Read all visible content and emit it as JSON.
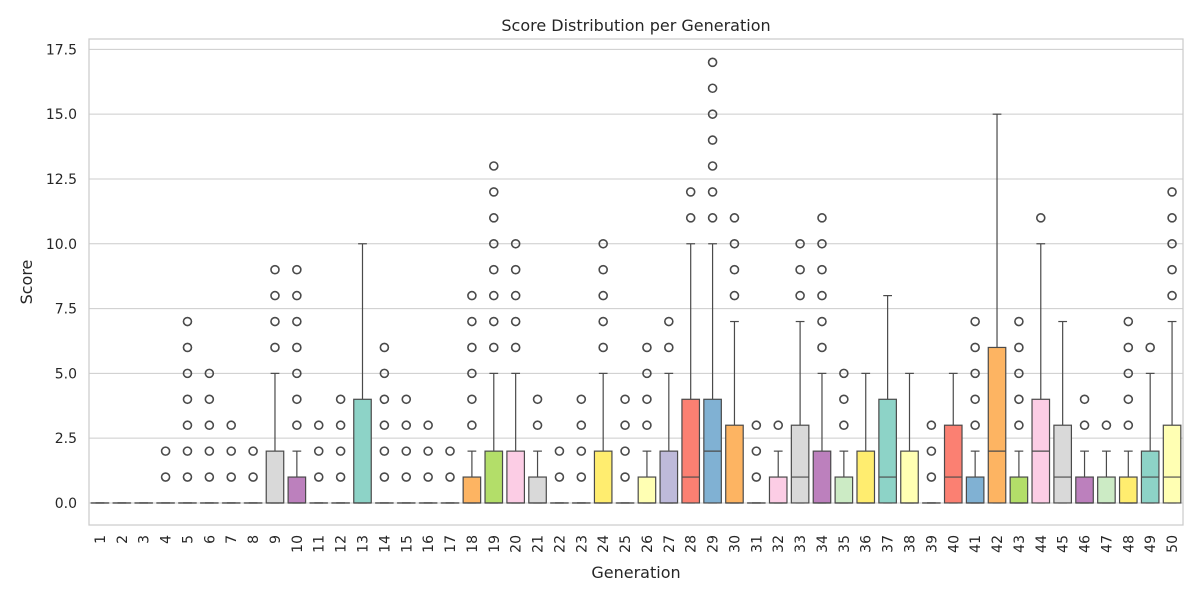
{
  "chart_data": {
    "type": "box",
    "title": "Score Distribution per Generation",
    "xlabel": "Generation",
    "ylabel": "Score",
    "ylim": [
      -0.85,
      17.9
    ],
    "yticks": [
      "0.0",
      "2.5",
      "5.0",
      "7.5",
      "10.0",
      "12.5",
      "15.0",
      "17.5"
    ],
    "grid": true,
    "legend": "none",
    "palette": [
      "#8dd3c7",
      "#ffffb3",
      "#bebada",
      "#fb8072",
      "#80b1d3",
      "#fdb462",
      "#b3de69",
      "#fccde5",
      "#d9d9d9",
      "#bc80bd",
      "#ccebc5",
      "#ffed6f"
    ],
    "series": [
      {
        "gen": "1",
        "q1": 0,
        "median": 0,
        "q3": 0,
        "whisker_low": 0,
        "whisker_high": 0,
        "outliers": []
      },
      {
        "gen": "2",
        "q1": 0,
        "median": 0,
        "q3": 0,
        "whisker_low": 0,
        "whisker_high": 0,
        "outliers": []
      },
      {
        "gen": "3",
        "q1": 0,
        "median": 0,
        "q3": 0,
        "whisker_low": 0,
        "whisker_high": 0,
        "outliers": []
      },
      {
        "gen": "4",
        "q1": 0,
        "median": 0,
        "q3": 0,
        "whisker_low": 0,
        "whisker_high": 0,
        "outliers": [
          1,
          2
        ]
      },
      {
        "gen": "5",
        "q1": 0,
        "median": 0,
        "q3": 0,
        "whisker_low": 0,
        "whisker_high": 0,
        "outliers": [
          1,
          2,
          3,
          4,
          5,
          6,
          7
        ]
      },
      {
        "gen": "6",
        "q1": 0,
        "median": 0,
        "q3": 0,
        "whisker_low": 0,
        "whisker_high": 0,
        "outliers": [
          1,
          2,
          3,
          4,
          5
        ]
      },
      {
        "gen": "7",
        "q1": 0,
        "median": 0,
        "q3": 0,
        "whisker_low": 0,
        "whisker_high": 0,
        "outliers": [
          1,
          2,
          3
        ]
      },
      {
        "gen": "8",
        "q1": 0,
        "median": 0,
        "q3": 0,
        "whisker_low": 0,
        "whisker_high": 0,
        "outliers": [
          1,
          2
        ]
      },
      {
        "gen": "9",
        "q1": 0,
        "median": 0,
        "q3": 2,
        "whisker_low": 0,
        "whisker_high": 5,
        "outliers": [
          6,
          7,
          8,
          9
        ]
      },
      {
        "gen": "10",
        "q1": 0,
        "median": 0,
        "q3": 1,
        "whisker_low": 0,
        "whisker_high": 2,
        "outliers": [
          3,
          4,
          5,
          6,
          7,
          8,
          9
        ]
      },
      {
        "gen": "11",
        "q1": 0,
        "median": 0,
        "q3": 0,
        "whisker_low": 0,
        "whisker_high": 0,
        "outliers": [
          1,
          2,
          3
        ]
      },
      {
        "gen": "12",
        "q1": 0,
        "median": 0,
        "q3": 0,
        "whisker_low": 0,
        "whisker_high": 0,
        "outliers": [
          1,
          2,
          3,
          4
        ]
      },
      {
        "gen": "13",
        "q1": 0,
        "median": 0,
        "q3": 4,
        "whisker_low": 0,
        "whisker_high": 10,
        "outliers": []
      },
      {
        "gen": "14",
        "q1": 0,
        "median": 0,
        "q3": 0,
        "whisker_low": 0,
        "whisker_high": 0,
        "outliers": [
          1,
          2,
          3,
          4,
          5,
          6
        ]
      },
      {
        "gen": "15",
        "q1": 0,
        "median": 0,
        "q3": 0,
        "whisker_low": 0,
        "whisker_high": 0,
        "outliers": [
          1,
          2,
          3,
          4
        ]
      },
      {
        "gen": "16",
        "q1": 0,
        "median": 0,
        "q3": 0,
        "whisker_low": 0,
        "whisker_high": 0,
        "outliers": [
          1,
          2,
          3
        ]
      },
      {
        "gen": "17",
        "q1": 0,
        "median": 0,
        "q3": 0,
        "whisker_low": 0,
        "whisker_high": 0,
        "outliers": [
          1,
          2
        ]
      },
      {
        "gen": "18",
        "q1": 0,
        "median": 0,
        "q3": 1,
        "whisker_low": 0,
        "whisker_high": 2,
        "outliers": [
          3,
          4,
          5,
          6,
          7,
          8
        ]
      },
      {
        "gen": "19",
        "q1": 0,
        "median": 0,
        "q3": 2,
        "whisker_low": 0,
        "whisker_high": 5,
        "outliers": [
          6,
          7,
          8,
          9,
          10,
          11,
          12,
          13
        ]
      },
      {
        "gen": "20",
        "q1": 0,
        "median": 0,
        "q3": 2,
        "whisker_low": 0,
        "whisker_high": 5,
        "outliers": [
          6,
          7,
          8,
          9,
          10
        ]
      },
      {
        "gen": "21",
        "q1": 0,
        "median": 0,
        "q3": 1,
        "whisker_low": 0,
        "whisker_high": 2,
        "outliers": [
          3,
          4
        ]
      },
      {
        "gen": "22",
        "q1": 0,
        "median": 0,
        "q3": 0,
        "whisker_low": 0,
        "whisker_high": 0,
        "outliers": [
          1,
          2
        ]
      },
      {
        "gen": "23",
        "q1": 0,
        "median": 0,
        "q3": 0,
        "whisker_low": 0,
        "whisker_high": 0,
        "outliers": [
          1,
          2,
          3,
          4
        ]
      },
      {
        "gen": "24",
        "q1": 0,
        "median": 0,
        "q3": 2,
        "whisker_low": 0,
        "whisker_high": 5,
        "outliers": [
          6,
          7,
          8,
          9,
          10
        ]
      },
      {
        "gen": "25",
        "q1": 0,
        "median": 0,
        "q3": 0,
        "whisker_low": 0,
        "whisker_high": 0,
        "outliers": [
          1,
          2,
          3,
          4
        ]
      },
      {
        "gen": "26",
        "q1": 0,
        "median": 0,
        "q3": 1,
        "whisker_low": 0,
        "whisker_high": 2,
        "outliers": [
          3,
          4,
          5,
          6
        ]
      },
      {
        "gen": "27",
        "q1": 0,
        "median": 0,
        "q3": 2,
        "whisker_low": 0,
        "whisker_high": 5,
        "outliers": [
          6,
          7
        ]
      },
      {
        "gen": "28",
        "q1": 0,
        "median": 1,
        "q3": 4,
        "whisker_low": 0,
        "whisker_high": 10,
        "outliers": [
          11,
          12
        ]
      },
      {
        "gen": "29",
        "q1": 0,
        "median": 2,
        "q3": 4,
        "whisker_low": 0,
        "whisker_high": 10,
        "outliers": [
          11,
          12,
          13,
          14,
          15,
          16,
          17
        ]
      },
      {
        "gen": "30",
        "q1": 0,
        "median": 0,
        "q3": 3,
        "whisker_low": 0,
        "whisker_high": 7,
        "outliers": [
          8,
          9,
          10,
          11
        ]
      },
      {
        "gen": "31",
        "q1": 0,
        "median": 0,
        "q3": 0,
        "whisker_low": 0,
        "whisker_high": 0,
        "outliers": [
          1,
          2,
          3
        ]
      },
      {
        "gen": "32",
        "q1": 0,
        "median": 0,
        "q3": 1,
        "whisker_low": 0,
        "whisker_high": 2,
        "outliers": [
          3
        ]
      },
      {
        "gen": "33",
        "q1": 0,
        "median": 1,
        "q3": 3,
        "whisker_low": 0,
        "whisker_high": 7,
        "outliers": [
          8,
          9,
          10
        ]
      },
      {
        "gen": "34",
        "q1": 0,
        "median": 0,
        "q3": 2,
        "whisker_low": 0,
        "whisker_high": 5,
        "outliers": [
          6,
          7,
          8,
          9,
          10,
          11
        ]
      },
      {
        "gen": "35",
        "q1": 0,
        "median": 0,
        "q3": 1,
        "whisker_low": 0,
        "whisker_high": 2,
        "outliers": [
          3,
          4,
          5
        ]
      },
      {
        "gen": "36",
        "q1": 0,
        "median": 0,
        "q3": 2,
        "whisker_low": 0,
        "whisker_high": 5,
        "outliers": []
      },
      {
        "gen": "37",
        "q1": 0,
        "median": 1,
        "q3": 4,
        "whisker_low": 0,
        "whisker_high": 8,
        "outliers": []
      },
      {
        "gen": "38",
        "q1": 0,
        "median": 0,
        "q3": 2,
        "whisker_low": 0,
        "whisker_high": 5,
        "outliers": []
      },
      {
        "gen": "39",
        "q1": 0,
        "median": 0,
        "q3": 0,
        "whisker_low": 0,
        "whisker_high": 0,
        "outliers": [
          1,
          2,
          3
        ]
      },
      {
        "gen": "40",
        "q1": 0,
        "median": 1,
        "q3": 3,
        "whisker_low": 0,
        "whisker_high": 5,
        "outliers": []
      },
      {
        "gen": "41",
        "q1": 0,
        "median": 0,
        "q3": 1,
        "whisker_low": 0,
        "whisker_high": 2,
        "outliers": [
          3,
          4,
          5,
          6,
          7
        ]
      },
      {
        "gen": "42",
        "q1": 0,
        "median": 2,
        "q3": 6,
        "whisker_low": 0,
        "whisker_high": 15,
        "outliers": []
      },
      {
        "gen": "43",
        "q1": 0,
        "median": 0,
        "q3": 1,
        "whisker_low": 0,
        "whisker_high": 2,
        "outliers": [
          3,
          4,
          5,
          6,
          7
        ]
      },
      {
        "gen": "44",
        "q1": 0,
        "median": 2,
        "q3": 4,
        "whisker_low": 0,
        "whisker_high": 10,
        "outliers": [
          11
        ]
      },
      {
        "gen": "45",
        "q1": 0,
        "median": 1,
        "q3": 3,
        "whisker_low": 0,
        "whisker_high": 7,
        "outliers": []
      },
      {
        "gen": "46",
        "q1": 0,
        "median": 0,
        "q3": 1,
        "whisker_low": 0,
        "whisker_high": 2,
        "outliers": [
          3,
          4
        ]
      },
      {
        "gen": "47",
        "q1": 0,
        "median": 0,
        "q3": 1,
        "whisker_low": 0,
        "whisker_high": 2,
        "outliers": [
          3
        ]
      },
      {
        "gen": "48",
        "q1": 0,
        "median": 0,
        "q3": 1,
        "whisker_low": 0,
        "whisker_high": 2,
        "outliers": [
          3,
          4,
          5,
          6,
          7
        ]
      },
      {
        "gen": "49",
        "q1": 0,
        "median": 1,
        "q3": 2,
        "whisker_low": 0,
        "whisker_high": 5,
        "outliers": [
          6
        ]
      },
      {
        "gen": "50",
        "q1": 0,
        "median": 1,
        "q3": 3,
        "whisker_low": 0,
        "whisker_high": 7,
        "outliers": [
          8,
          9,
          10,
          11,
          12
        ]
      }
    ]
  }
}
